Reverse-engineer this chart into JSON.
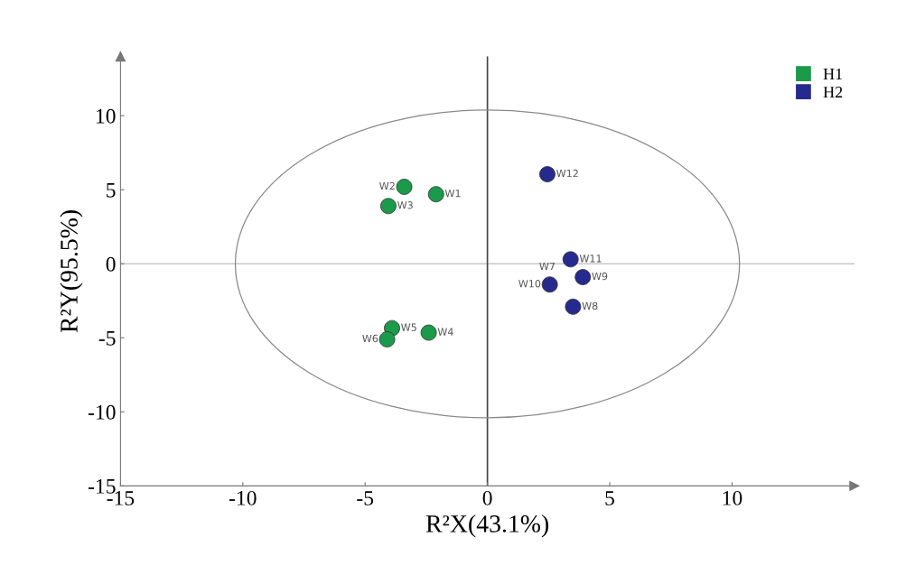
{
  "chart_data": {
    "type": "scatter",
    "xlabel": "R²X(43.1%)",
    "ylabel": "R²Y(95.5%)",
    "xlim": [
      -15,
      15
    ],
    "ylim": [
      -15,
      14
    ],
    "xticks": [
      {
        "value": -15,
        "label": "-15"
      },
      {
        "value": -10,
        "label": "-10"
      },
      {
        "value": -5,
        "label": "-5"
      },
      0,
      5,
      10
    ],
    "yticks": [
      {
        "value": -15,
        "label": "-15"
      },
      {
        "value": -10,
        "label": "-10"
      },
      {
        "value": -5,
        "label": "-5"
      },
      0,
      5,
      10
    ],
    "grid": false,
    "legend": "top right",
    "marker": "circle",
    "series": [
      {
        "name": "H1",
        "color": "#1a9a4a",
        "x": [
          -2.1,
          -3.4,
          -4.05,
          -2.4,
          -3.9,
          -4.1
        ],
        "values": [
          4.7,
          5.2,
          3.9,
          -4.65,
          -4.35,
          -5.1
        ],
        "value_labels": [
          "W1",
          "W2",
          "W3",
          "W4",
          "W5",
          "W6"
        ]
      },
      {
        "name": "H2",
        "color": "#262a8f",
        "x": [
          3.5,
          3.9,
          2.55,
          3.4,
          2.45
        ],
        "values": [
          -2.9,
          -0.9,
          -1.4,
          0.3,
          6.05
        ],
        "value_labels": [
          "W8",
          "W9",
          "W10",
          "W11",
          "W12"
        ]
      }
    ],
    "ref_lines": [
      {
        "axis": "y",
        "value": 0,
        "color": "#c8c8c8"
      },
      {
        "axis": "x",
        "value": 0,
        "color": "#444444"
      }
    ],
    "annotations": [
      {
        "text": "W7",
        "x": 2.55,
        "y": -1.4
      }
    ]
  }
}
